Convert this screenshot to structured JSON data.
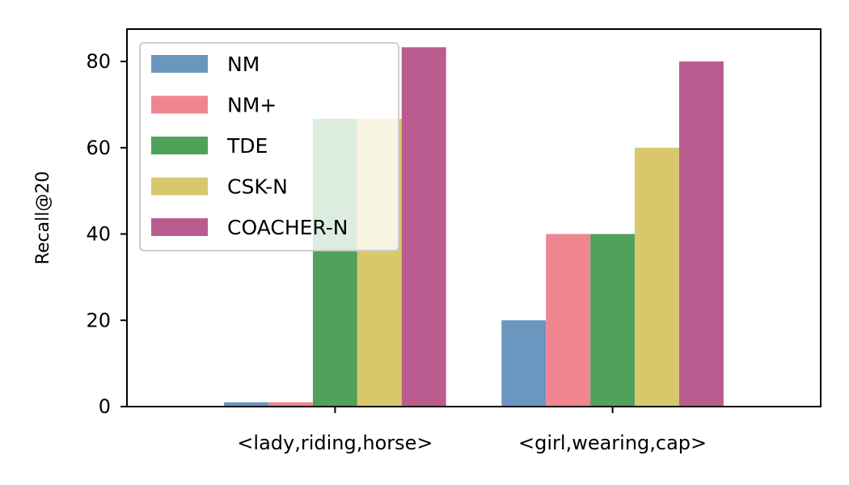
{
  "chart_data": {
    "type": "bar",
    "ylabel": "Recall@20",
    "xlabel": "",
    "ylim": [
      0,
      87.5
    ],
    "yticks": [
      0,
      20,
      40,
      60,
      80
    ],
    "categories": [
      "<lady,riding,horse>",
      "<girl,wearing,cap>"
    ],
    "series": [
      {
        "name": "NM",
        "color": "#6b96bf",
        "values": [
          1,
          20
        ]
      },
      {
        "name": "NM+",
        "color": "#f08592",
        "values": [
          1,
          40
        ]
      },
      {
        "name": "TDE",
        "color": "#50a15a",
        "values": [
          66.7,
          40
        ]
      },
      {
        "name": "CSK-N",
        "color": "#d8c86b",
        "values": [
          66.7,
          60
        ]
      },
      {
        "name": "COACHER-N",
        "color": "#ba5c90",
        "values": [
          83.3,
          80
        ]
      }
    ],
    "legend": {
      "placement": "top-left"
    },
    "grid": false
  }
}
